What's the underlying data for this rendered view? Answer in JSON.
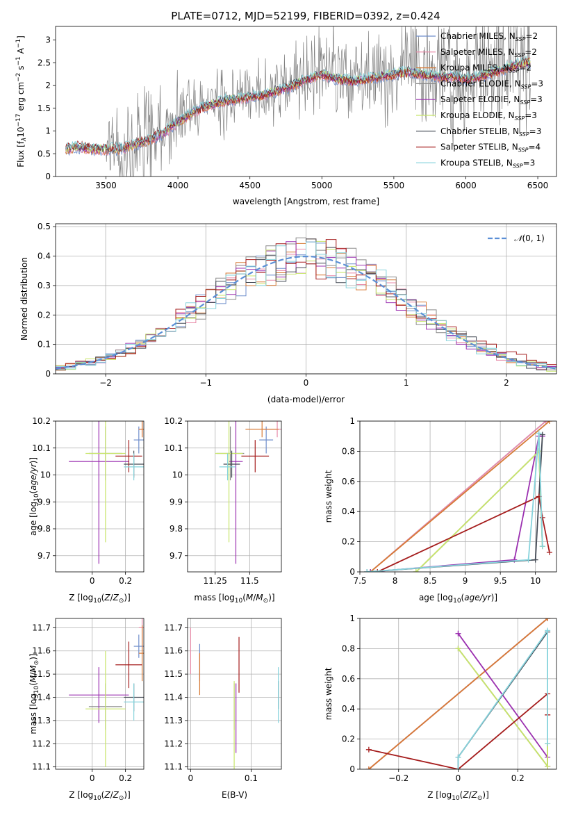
{
  "title": "PLATE=0712, MJD=52199, FIBERID=0392, z=0.424",
  "colors": {
    "Chabrier MILES": "#6f8ecb",
    "Salpeter MILES": "#e88aa8",
    "Kroupa MILES": "#d77a36",
    "Chabrier ELODIE": "#8a8a8a",
    "Salpeter ELODIE": "#9b30b0",
    "Kroupa ELODIE": "#c8e56a",
    "Chabrier STELIB": "#444a55",
    "Salpeter STELIB": "#a51d1d",
    "Kroupa STELIB": "#86d3dc",
    "normal": "#5b8fd6",
    "data": "#808080"
  },
  "chart_data": [
    {
      "id": "spectrum",
      "type": "line",
      "xlabel": "wavelength [Angstrom, rest frame]",
      "ylabel": "Flux [f_λ10^-17 erg cm^-2 s^-1 A^-1]",
      "xlim": [
        3150,
        6630
      ],
      "ylim": [
        0,
        3.3
      ],
      "xticks": [
        3500,
        4000,
        4500,
        5000,
        5500,
        6000,
        6500
      ],
      "yticks": [
        0.0,
        0.5,
        1.0,
        1.5,
        2.0,
        2.5,
        3.0
      ],
      "legend_location": "right",
      "legend": [
        "Chabrier MILES, N_SSP=2",
        "Salpeter MILES, N_SSP=2",
        "Kroupa MILES, N_SSP=2",
        "Chabrier ELODIE, N_SSP=3",
        "Salpeter ELODIE, N_SSP=3",
        "Kroupa ELODIE, N_SSP=3",
        "Chabrier STELIB, N_SSP=3",
        "Salpeter STELIB, N_SSP=4",
        "Kroupa STELIB, N_SSP=3"
      ],
      "continuum_x": [
        3220,
        3300,
        3400,
        3500,
        3600,
        3700,
        3800,
        3900,
        4000,
        4100,
        4200,
        4300,
        4400,
        4500,
        4600,
        4700,
        4800,
        4900,
        5000,
        5100,
        5200,
        5300,
        5400,
        5500,
        5600,
        5700,
        5800,
        5900,
        6000,
        6100,
        6200,
        6300,
        6400
      ],
      "continuum_y": [
        0.65,
        0.7,
        0.65,
        0.65,
        0.65,
        0.75,
        0.85,
        1.0,
        1.25,
        1.45,
        1.6,
        1.7,
        1.75,
        1.8,
        1.85,
        1.95,
        2.05,
        2.2,
        2.3,
        2.2,
        2.15,
        2.2,
        2.25,
        2.3,
        2.35,
        2.3,
        2.25,
        2.25,
        2.2,
        2.25,
        2.35,
        2.45,
        2.55
      ],
      "noise_x": [
        3500,
        3500,
        3600,
        3800,
        4000,
        4500,
        5000,
        5500,
        6000,
        6450
      ],
      "noise_amp": [
        0.05,
        0.5,
        0.8,
        0.7,
        0.55,
        0.45,
        0.7,
        0.75,
        1.0,
        1.3
      ]
    },
    {
      "id": "residuals",
      "type": "histogram",
      "xlabel": "(data-model)/error",
      "ylabel": "Normed distribution",
      "xlim": [
        -2.5,
        2.5
      ],
      "ylim": [
        0,
        0.51
      ],
      "xticks": [
        -2,
        -1,
        0,
        1,
        2
      ],
      "yticks": [
        0.0,
        0.1,
        0.2,
        0.3,
        0.4,
        0.5
      ],
      "legend_location": "upper right",
      "legend": [
        "N(0,1)"
      ],
      "bin_width": 0.1
    },
    {
      "id": "age-vs-Z",
      "type": "errorbar",
      "xlabel": "Z [log10(Z/Z☉)]",
      "ylabel": "age [log10(age/yr)]",
      "xlim": [
        -0.22,
        0.31
      ],
      "ylim": [
        9.64,
        10.2
      ],
      "xticks": [
        0.0,
        0.2
      ],
      "yticks": [
        9.7,
        9.8,
        9.9,
        10.0,
        10.1,
        10.2
      ],
      "points": [
        {
          "model": "Chabrier MILES",
          "x": 0.28,
          "y": 10.13,
          "xerr": 0.03,
          "yerr": 0.05
        },
        {
          "model": "Salpeter MILES",
          "x": 0.3,
          "y": 10.17,
          "xerr": 0.02,
          "yerr": 0.03
        },
        {
          "model": "Kroupa MILES",
          "x": 0.3,
          "y": 10.17,
          "xerr": 0.02,
          "yerr": 0.03
        },
        {
          "model": "Chabrier ELODIE",
          "x": 0.08,
          "y": 10.08,
          "xerr": 0.1,
          "yerr": 0.1
        },
        {
          "model": "Salpeter ELODIE",
          "x": 0.04,
          "y": 10.05,
          "xerr": 0.18,
          "yerr": 0.38
        },
        {
          "model": "Kroupa ELODIE",
          "x": 0.08,
          "y": 10.08,
          "xerr": 0.12,
          "yerr": 0.33
        },
        {
          "model": "Chabrier STELIB",
          "x": 0.25,
          "y": 10.04,
          "xerr": 0.06,
          "yerr": 0.05
        },
        {
          "model": "Salpeter STELIB",
          "x": 0.22,
          "y": 10.07,
          "xerr": 0.08,
          "yerr": 0.06
        },
        {
          "model": "Kroupa STELIB",
          "x": 0.25,
          "y": 10.03,
          "xerr": 0.06,
          "yerr": 0.05
        }
      ]
    },
    {
      "id": "age-vs-mass",
      "type": "errorbar",
      "xlabel": "mass [log10(M/M☉)]",
      "ylabel": "",
      "xlim": [
        11.05,
        11.73
      ],
      "ylim": [
        9.64,
        10.2
      ],
      "xticks": [
        11.25,
        11.5
      ],
      "yticks": [
        9.7,
        9.8,
        9.9,
        10.0,
        10.1,
        10.2
      ],
      "points": [
        {
          "model": "Chabrier MILES",
          "x": 11.62,
          "y": 10.13,
          "xerr": 0.05,
          "yerr": 0.05
        },
        {
          "model": "Salpeter MILES",
          "x": 11.7,
          "y": 10.17,
          "xerr": 0.1,
          "yerr": 0.03
        },
        {
          "model": "Kroupa MILES",
          "x": 11.59,
          "y": 10.17,
          "xerr": 0.12,
          "yerr": 0.03
        },
        {
          "model": "Chabrier ELODIE",
          "x": 11.36,
          "y": 10.08,
          "xerr": 0.1,
          "yerr": 0.1
        },
        {
          "model": "Salpeter ELODIE",
          "x": 11.4,
          "y": 10.05,
          "xerr": 0.05,
          "yerr": 0.38
        },
        {
          "model": "Kroupa ELODIE",
          "x": 11.35,
          "y": 10.08,
          "xerr": 0.1,
          "yerr": 0.33
        },
        {
          "model": "Chabrier STELIB",
          "x": 11.37,
          "y": 10.04,
          "xerr": 0.06,
          "yerr": 0.05
        },
        {
          "model": "Salpeter STELIB",
          "x": 11.54,
          "y": 10.07,
          "xerr": 0.1,
          "yerr": 0.06
        },
        {
          "model": "Kroupa STELIB",
          "x": 11.34,
          "y": 10.03,
          "xerr": 0.06,
          "yerr": 0.05
        }
      ]
    },
    {
      "id": "weight-vs-age",
      "type": "line",
      "xlabel": "age [log10(age/yr)]",
      "ylabel": "mass weight",
      "xlim": [
        7.5,
        10.3
      ],
      "ylim": [
        0,
        1.0
      ],
      "xticks": [
        7.5,
        8.0,
        8.5,
        9.0,
        9.5,
        10.0
      ],
      "yticks": [
        0.0,
        0.2,
        0.4,
        0.6,
        0.8,
        1.0
      ],
      "series": [
        {
          "model": "Chabrier MILES",
          "x": [
            7.65,
            10.15
          ],
          "y": [
            0.0,
            1.0
          ]
        },
        {
          "model": "Salpeter MILES",
          "x": [
            7.65,
            10.15
          ],
          "y": [
            0.0,
            1.0
          ]
        },
        {
          "model": "Kroupa MILES",
          "x": [
            7.65,
            10.2
          ],
          "y": [
            0.0,
            1.0
          ]
        },
        {
          "model": "Chabrier ELODIE",
          "x": [
            8.3,
            10.05,
            10.1
          ],
          "y": [
            0.0,
            0.8,
            0.17
          ]
        },
        {
          "model": "Salpeter ELODIE",
          "x": [
            7.65,
            9.7,
            10.05,
            10.1
          ],
          "y": [
            0.0,
            0.08,
            0.9,
            0.9
          ]
        },
        {
          "model": "Kroupa ELODIE",
          "x": [
            8.3,
            10.05,
            10.1
          ],
          "y": [
            0.0,
            0.8,
            0.17
          ]
        },
        {
          "model": "Chabrier STELIB",
          "x": [
            7.6,
            10.0,
            10.1
          ],
          "y": [
            0.0,
            0.08,
            0.91
          ]
        },
        {
          "model": "Salpeter STELIB",
          "x": [
            7.75,
            10.05,
            10.1,
            10.2
          ],
          "y": [
            0.0,
            0.5,
            0.36,
            0.13
          ]
        },
        {
          "model": "Kroupa STELIB",
          "x": [
            7.6,
            9.9,
            10.05,
            10.1
          ],
          "y": [
            0.0,
            0.08,
            0.92,
            0.17
          ]
        }
      ]
    },
    {
      "id": "mass-vs-Z",
      "type": "errorbar",
      "xlabel": "Z [log10(Z/Z☉)]",
      "ylabel": "mass [log10(M/M☉)]",
      "xlim": [
        -0.22,
        0.31
      ],
      "ylim": [
        11.09,
        11.74
      ],
      "xticks": [
        0.0,
        0.2
      ],
      "yticks": [
        11.1,
        11.2,
        11.3,
        11.4,
        11.5,
        11.6,
        11.7
      ],
      "points": [
        {
          "model": "Chabrier MILES",
          "x": 0.28,
          "y": 11.62,
          "xerr": 0.03,
          "yerr": 0.05
        },
        {
          "model": "Salpeter MILES",
          "x": 0.3,
          "y": 11.7,
          "xerr": 0.02,
          "yerr": 0.1
        },
        {
          "model": "Kroupa MILES",
          "x": 0.3,
          "y": 11.59,
          "xerr": 0.02,
          "yerr": 0.12
        },
        {
          "model": "Chabrier ELODIE",
          "x": 0.08,
          "y": 11.36,
          "xerr": 0.1,
          "yerr": 0.1
        },
        {
          "model": "Salpeter ELODIE",
          "x": 0.04,
          "y": 11.41,
          "xerr": 0.18,
          "yerr": 0.12
        },
        {
          "model": "Kroupa ELODIE",
          "x": 0.08,
          "y": 11.35,
          "xerr": 0.12,
          "yerr": 0.25
        },
        {
          "model": "Chabrier STELIB",
          "x": 0.25,
          "y": 11.4,
          "xerr": 0.06,
          "yerr": 0.06
        },
        {
          "model": "Salpeter STELIB",
          "x": 0.22,
          "y": 11.54,
          "xerr": 0.08,
          "yerr": 0.1
        },
        {
          "model": "Kroupa STELIB",
          "x": 0.25,
          "y": 11.38,
          "xerr": 0.06,
          "yerr": 0.08
        }
      ]
    },
    {
      "id": "mass-vs-EBV",
      "type": "errorbar",
      "xlabel": "E(B-V)",
      "ylabel": "",
      "xlim": [
        -0.005,
        0.15
      ],
      "ylim": [
        11.09,
        11.74
      ],
      "xticks": [
        0.0,
        0.1
      ],
      "yticks": [
        11.1,
        11.2,
        11.3,
        11.4,
        11.5,
        11.6,
        11.7
      ],
      "points": [
        {
          "model": "Chabrier MILES",
          "x": 0.015,
          "y": 11.55,
          "xerr": 0,
          "yerr": 0.08
        },
        {
          "model": "Salpeter MILES",
          "x": 0.0,
          "y": 11.6,
          "xerr": 0,
          "yerr": 0.1
        },
        {
          "model": "Kroupa MILES",
          "x": 0.015,
          "y": 11.5,
          "xerr": 0,
          "yerr": 0.09
        },
        {
          "model": "Chabrier ELODIE",
          "x": 0.072,
          "y": 11.36,
          "xerr": 0,
          "yerr": 0.1
        },
        {
          "model": "Salpeter ELODIE",
          "x": 0.075,
          "y": 11.31,
          "xerr": 0,
          "yerr": 0.15
        },
        {
          "model": "Kroupa ELODIE",
          "x": 0.072,
          "y": 11.27,
          "xerr": 0,
          "yerr": 0.2
        },
        {
          "model": "Chabrier STELIB",
          "x": 0.145,
          "y": 11.41,
          "xerr": 0,
          "yerr": 0.06
        },
        {
          "model": "Salpeter STELIB",
          "x": 0.08,
          "y": 11.54,
          "xerr": 0,
          "yerr": 0.12
        },
        {
          "model": "Kroupa STELIB",
          "x": 0.145,
          "y": 11.41,
          "xerr": 0,
          "yerr": 0.12
        }
      ]
    },
    {
      "id": "weight-vs-Z",
      "type": "line",
      "xlabel": "Z [log10(Z/Z☉)]",
      "ylabel": "mass weight",
      "xlim": [
        -0.33,
        0.33
      ],
      "ylim": [
        0,
        1.0
      ],
      "xticks": [
        -0.2,
        0.0,
        0.2
      ],
      "yticks": [
        0.0,
        0.2,
        0.4,
        0.6,
        0.8,
        1.0
      ],
      "series": [
        {
          "model": "Chabrier MILES",
          "x": [
            -0.3,
            0.3
          ],
          "y": [
            0.0,
            1.0
          ]
        },
        {
          "model": "Salpeter MILES",
          "x": [
            -0.3,
            0.3
          ],
          "y": [
            0.0,
            1.0
          ]
        },
        {
          "model": "Kroupa MILES",
          "x": [
            -0.3,
            0.3
          ],
          "y": [
            0.0,
            1.0
          ]
        },
        {
          "model": "Chabrier ELODIE",
          "x": [
            0.0,
            0.3,
            0.3
          ],
          "y": [
            0.8,
            0.02,
            0.17
          ]
        },
        {
          "model": "Salpeter ELODIE",
          "x": [
            0.0,
            0.0,
            0.3,
            0.3
          ],
          "y": [
            0.9,
            0.9,
            0.08,
            0.02
          ]
        },
        {
          "model": "Kroupa ELODIE",
          "x": [
            0.0,
            0.3,
            0.3
          ],
          "y": [
            0.8,
            0.02,
            0.17
          ]
        },
        {
          "model": "Chabrier STELIB",
          "x": [
            0.0,
            0.0,
            0.3
          ],
          "y": [
            0.0,
            0.08,
            0.91
          ]
        },
        {
          "model": "Salpeter STELIB",
          "x": [
            -0.3,
            0.0,
            0.3,
            0.3,
            0.3
          ],
          "y": [
            0.13,
            0.0,
            0.5,
            0.36,
            0.36
          ]
        },
        {
          "model": "Kroupa STELIB",
          "x": [
            0.0,
            0.0,
            0.3,
            0.3
          ],
          "y": [
            0.0,
            0.08,
            0.92,
            0.17
          ]
        }
      ]
    }
  ]
}
